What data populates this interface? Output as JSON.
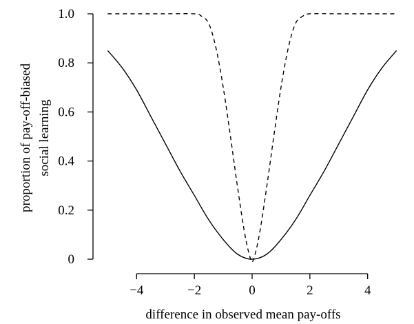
{
  "chart_data": {
    "type": "line",
    "title": "",
    "xlabel": "difference in observed mean pay-offs",
    "ylabel_lines": [
      "proportion of pay-off-biased",
      "social learning"
    ],
    "xlim": [
      -5.2,
      5.2
    ],
    "ylim": [
      0,
      1.0
    ],
    "x_ticks": [
      -4,
      -2,
      0,
      2,
      4
    ],
    "x_tick_labels": [
      "−4",
      "−2",
      "0",
      "2",
      "4"
    ],
    "y_ticks": [
      0,
      0.2,
      0.4,
      0.6,
      0.8,
      1.0
    ],
    "y_tick_labels": [
      "0",
      "0.2",
      "0.4",
      "0.6",
      "0.8",
      "1.0"
    ],
    "grid": false,
    "legend": "none",
    "series": [
      {
        "style": "solid",
        "color": "#000000",
        "x": [
          -5.0,
          -4.5,
          -4.0,
          -3.5,
          -3.0,
          -2.5,
          -2.0,
          -1.5,
          -1.0,
          -0.5,
          0.0,
          0.5,
          1.0,
          1.5,
          2.0,
          2.5,
          3.0,
          3.5,
          4.0,
          4.5,
          5.0
        ],
        "y": [
          0.85,
          0.78,
          0.69,
          0.58,
          0.47,
          0.36,
          0.26,
          0.16,
          0.08,
          0.02,
          0.0,
          0.02,
          0.08,
          0.16,
          0.26,
          0.36,
          0.47,
          0.58,
          0.69,
          0.78,
          0.85
        ]
      },
      {
        "style": "dashed",
        "color": "#000000",
        "x": [
          -5.0,
          -4.0,
          -3.0,
          -2.0,
          -1.75,
          -1.5,
          -1.25,
          -1.0,
          -0.75,
          -0.5,
          -0.25,
          -0.05,
          0.05,
          0.25,
          0.5,
          0.75,
          1.0,
          1.25,
          1.5,
          1.75,
          2.0,
          3.0,
          4.0,
          5.0
        ],
        "y": [
          1.0,
          1.0,
          1.0,
          1.0,
          0.99,
          0.96,
          0.86,
          0.7,
          0.5,
          0.29,
          0.1,
          0.0,
          0.0,
          0.1,
          0.29,
          0.5,
          0.7,
          0.86,
          0.96,
          0.99,
          1.0,
          1.0,
          1.0,
          1.0
        ]
      }
    ]
  }
}
